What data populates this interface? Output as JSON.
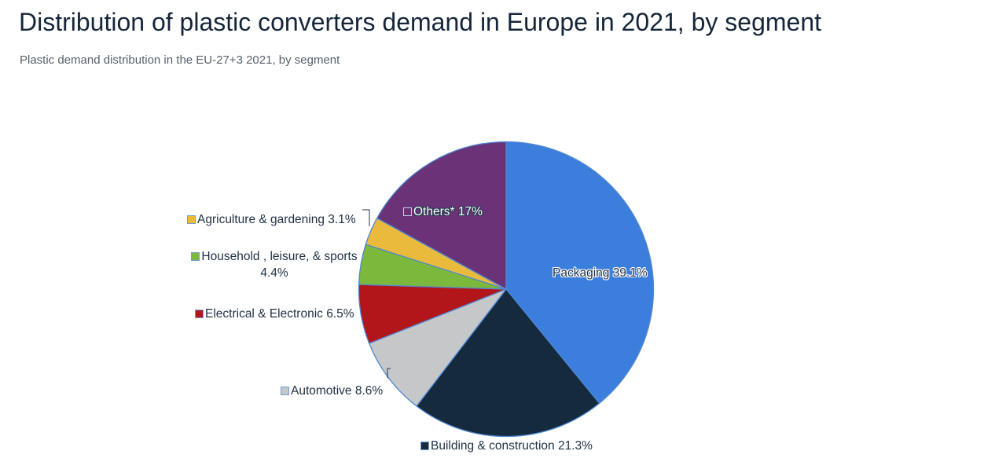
{
  "chart_data": {
    "type": "pie",
    "title": "Distribution of plastic converters demand in Europe in 2021, by segment",
    "subtitle": "Plastic demand distribution in the EU-27+3 2021, by segment",
    "unit": "%",
    "start_angle": "12 o'clock",
    "direction": "clockwise",
    "stroke_color": "#4e88d4",
    "background_color": "#ffffff",
    "title_color": "#15263a",
    "subtitle_color": "#57616e",
    "label_text_color": "#1f3044",
    "segments": [
      {
        "name": "Packaging",
        "value": 39.1,
        "label": "Packaging 39.1%",
        "color": "#3c7edc"
      },
      {
        "name": "Building & construction",
        "value": 21.3,
        "label": "Building & construction 21.3%",
        "color": "#152a3d"
      },
      {
        "name": "Automotive",
        "value": 8.6,
        "label": "Automotive 8.6%",
        "color": "#c6c7c8"
      },
      {
        "name": "Electrical & Electronic",
        "value": 6.5,
        "label": "Electrical & Electronic 6.5%",
        "color": "#b2161b"
      },
      {
        "name": "Household , leisure, & sports",
        "value": 4.4,
        "label": "Household , leisure, & sports 4.4%",
        "color": "#7bb83b"
      },
      {
        "name": "Agriculture & gardening",
        "value": 3.1,
        "label": "Agriculture & gardening 3.1%",
        "color": "#eaba3c"
      },
      {
        "name": "Others*",
        "value": 17,
        "label": "Others* 17%",
        "color": "#6a3277"
      }
    ]
  }
}
